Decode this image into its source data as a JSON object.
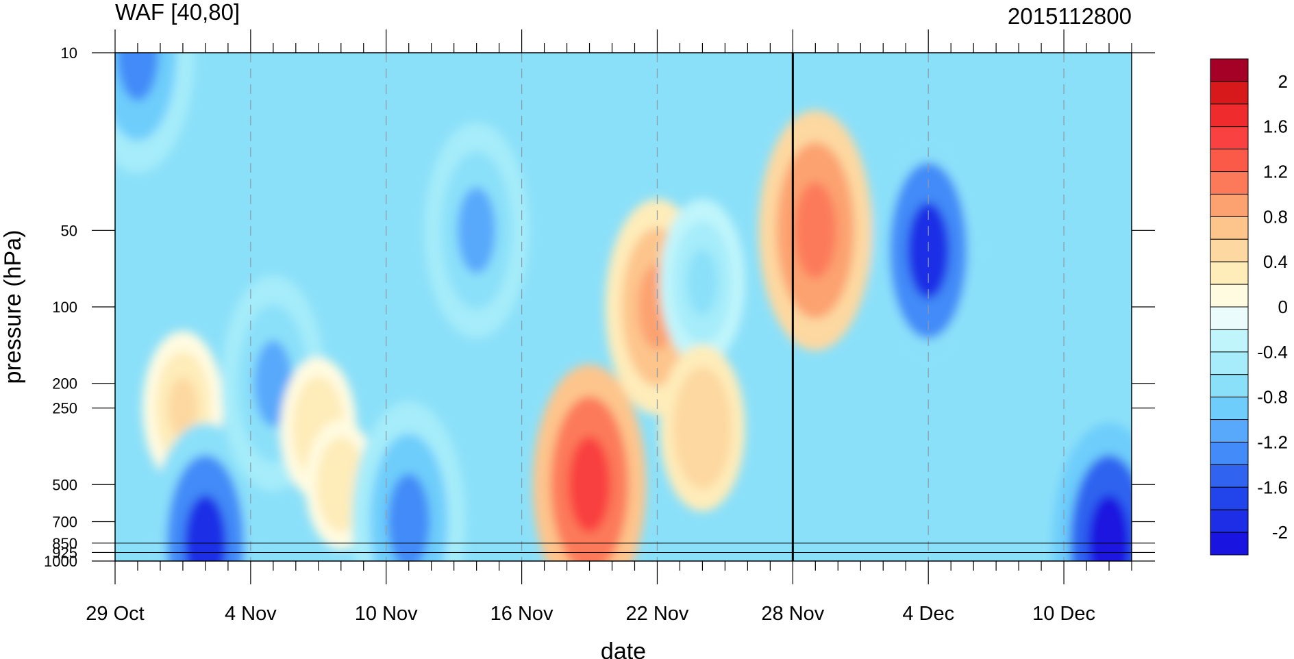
{
  "chart_data": {
    "type": "heatmap",
    "title_left": "WAF [40,80]",
    "title_right": "2015112800",
    "xlabel": "date",
    "ylabel": "pressure (hPa)",
    "x_ticks": [
      "29 Oct",
      "4 Nov",
      "10 Nov",
      "16 Nov",
      "22 Nov",
      "28 Nov",
      "4 Dec",
      "10 Dec"
    ],
    "x_range_days": [
      0,
      45
    ],
    "y_ticks": [
      10,
      50,
      100,
      200,
      250,
      500,
      700,
      850,
      925,
      1000
    ],
    "y_scale": "log",
    "ylim": [
      1000,
      10
    ],
    "marker_date": "28 Nov",
    "colorbar": {
      "labels": [
        "2",
        "1.6",
        "1.2",
        "0.8",
        "0.4",
        "0",
        "-0.4",
        "-0.8",
        "-1.2",
        "-1.6",
        "-2"
      ],
      "levels": [
        2.2,
        2.0,
        1.8,
        1.6,
        1.4,
        1.2,
        1.0,
        0.8,
        0.6,
        0.4,
        0.2,
        0,
        -0.2,
        -0.4,
        -0.6,
        -0.8,
        -1.0,
        -1.2,
        -1.4,
        -1.6,
        -1.8,
        -2.0,
        -2.2
      ],
      "colors": [
        "#a50026",
        "#d7191c",
        "#ef2b2d",
        "#f94141",
        "#fb5a48",
        "#fc7a5a",
        "#fca271",
        "#fdc58c",
        "#fdd8a0",
        "#feecb9",
        "#fffbe1",
        "#ebfcfd",
        "#c0f5fb",
        "#a6ecfa",
        "#8be0f9",
        "#6ecdfb",
        "#58a9fb",
        "#428bf8",
        "#2f63f0",
        "#2145ea",
        "#1e2ee6",
        "#1a14e0"
      ]
    },
    "features": [
      {
        "date": "30 Oct",
        "pressure": 10,
        "value": -1.3
      },
      {
        "date": "1 Nov",
        "pressure": 250,
        "value": 0.5
      },
      {
        "date": "2 Nov",
        "pressure": 850,
        "value": -1.9
      },
      {
        "date": "5 Nov",
        "pressure": 200,
        "value": -1.0
      },
      {
        "date": "7 Nov",
        "pressure": 300,
        "value": 0.4
      },
      {
        "date": "8 Nov",
        "pressure": 500,
        "value": 0.3
      },
      {
        "date": "11 Nov",
        "pressure": 700,
        "value": -1.3
      },
      {
        "date": "14 Nov",
        "pressure": 50,
        "value": -1.0
      },
      {
        "date": "19 Nov",
        "pressure": 500,
        "value": 1.6
      },
      {
        "date": "22 Nov",
        "pressure": 100,
        "value": 1.0
      },
      {
        "date": "24 Nov",
        "pressure": 80,
        "value": -0.6
      },
      {
        "date": "24 Nov",
        "pressure": 300,
        "value": 0.6
      },
      {
        "date": "29 Nov",
        "pressure": 50,
        "value": 1.2
      },
      {
        "date": "4 Dec",
        "pressure": 60,
        "value": -1.8
      },
      {
        "date": "12 Dec",
        "pressure": 850,
        "value": -2.0
      }
    ]
  }
}
